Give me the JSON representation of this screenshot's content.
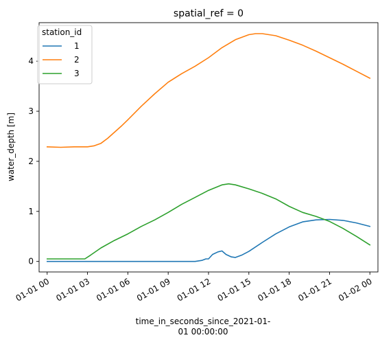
{
  "chart_data": {
    "type": "line",
    "title": "spatial_ref = 0",
    "xlabel_lines": [
      "time_in_seconds_since_2021-01-",
      "01 00:00:00"
    ],
    "ylabel": "water_depth [m]",
    "xlim": [
      -0.6,
      24.6
    ],
    "ylim": [
      -0.21,
      4.77
    ],
    "x_ticks": [
      0,
      3,
      6,
      9,
      12,
      15,
      18,
      21,
      24
    ],
    "x_tick_labels": [
      "01-01 00",
      "01-01 03",
      "01-01 06",
      "01-01 09",
      "01-01 12",
      "01-01 15",
      "01-01 18",
      "01-01 21",
      "01-02 00"
    ],
    "y_ticks": [
      0,
      1,
      2,
      3,
      4
    ],
    "y_tick_labels": [
      "0",
      "1",
      "2",
      "3",
      "4"
    ],
    "grid": false,
    "legend": {
      "title": "station_id",
      "placement": "top-left"
    },
    "series": [
      {
        "name": "1",
        "color": "#1f77b4",
        "x": [
          0,
          11,
          11.5,
          11.8,
          12,
          12.3,
          12.7,
          13,
          13.3,
          13.7,
          14,
          14.5,
          15,
          16,
          17,
          18,
          19,
          20,
          21,
          22,
          23,
          24
        ],
        "y": [
          0,
          0,
          0.02,
          0.05,
          0.05,
          0.14,
          0.19,
          0.21,
          0.14,
          0.09,
          0.08,
          0.13,
          0.2,
          0.38,
          0.55,
          0.69,
          0.79,
          0.83,
          0.84,
          0.82,
          0.77,
          0.7
        ]
      },
      {
        "name": "2",
        "color": "#ff7f0e",
        "x": [
          0,
          1,
          2,
          3,
          3.5,
          4,
          4.5,
          5,
          5.5,
          6,
          7,
          8,
          9,
          10,
          11,
          12,
          13,
          14,
          15,
          15.5,
          16,
          17,
          18,
          19,
          20,
          21,
          22,
          23,
          24
        ],
        "y": [
          2.29,
          2.28,
          2.29,
          2.29,
          2.31,
          2.36,
          2.46,
          2.58,
          2.7,
          2.83,
          3.1,
          3.35,
          3.58,
          3.75,
          3.9,
          4.07,
          4.27,
          4.43,
          4.53,
          4.55,
          4.55,
          4.51,
          4.42,
          4.32,
          4.2,
          4.07,
          3.94,
          3.8,
          3.66
        ]
      },
      {
        "name": "3",
        "color": "#2ca02c",
        "x": [
          0,
          1,
          2,
          2.8,
          3.2,
          4,
          5,
          6,
          7,
          8,
          9,
          10,
          11,
          12,
          13,
          13.5,
          14,
          15,
          16,
          17,
          18,
          19,
          20,
          21,
          22,
          23,
          24
        ],
        "y": [
          0.05,
          0.05,
          0.05,
          0.05,
          0.12,
          0.27,
          0.42,
          0.55,
          0.7,
          0.83,
          0.98,
          1.14,
          1.28,
          1.42,
          1.53,
          1.55,
          1.53,
          1.45,
          1.36,
          1.25,
          1.1,
          0.98,
          0.9,
          0.8,
          0.66,
          0.5,
          0.33
        ]
      }
    ]
  }
}
